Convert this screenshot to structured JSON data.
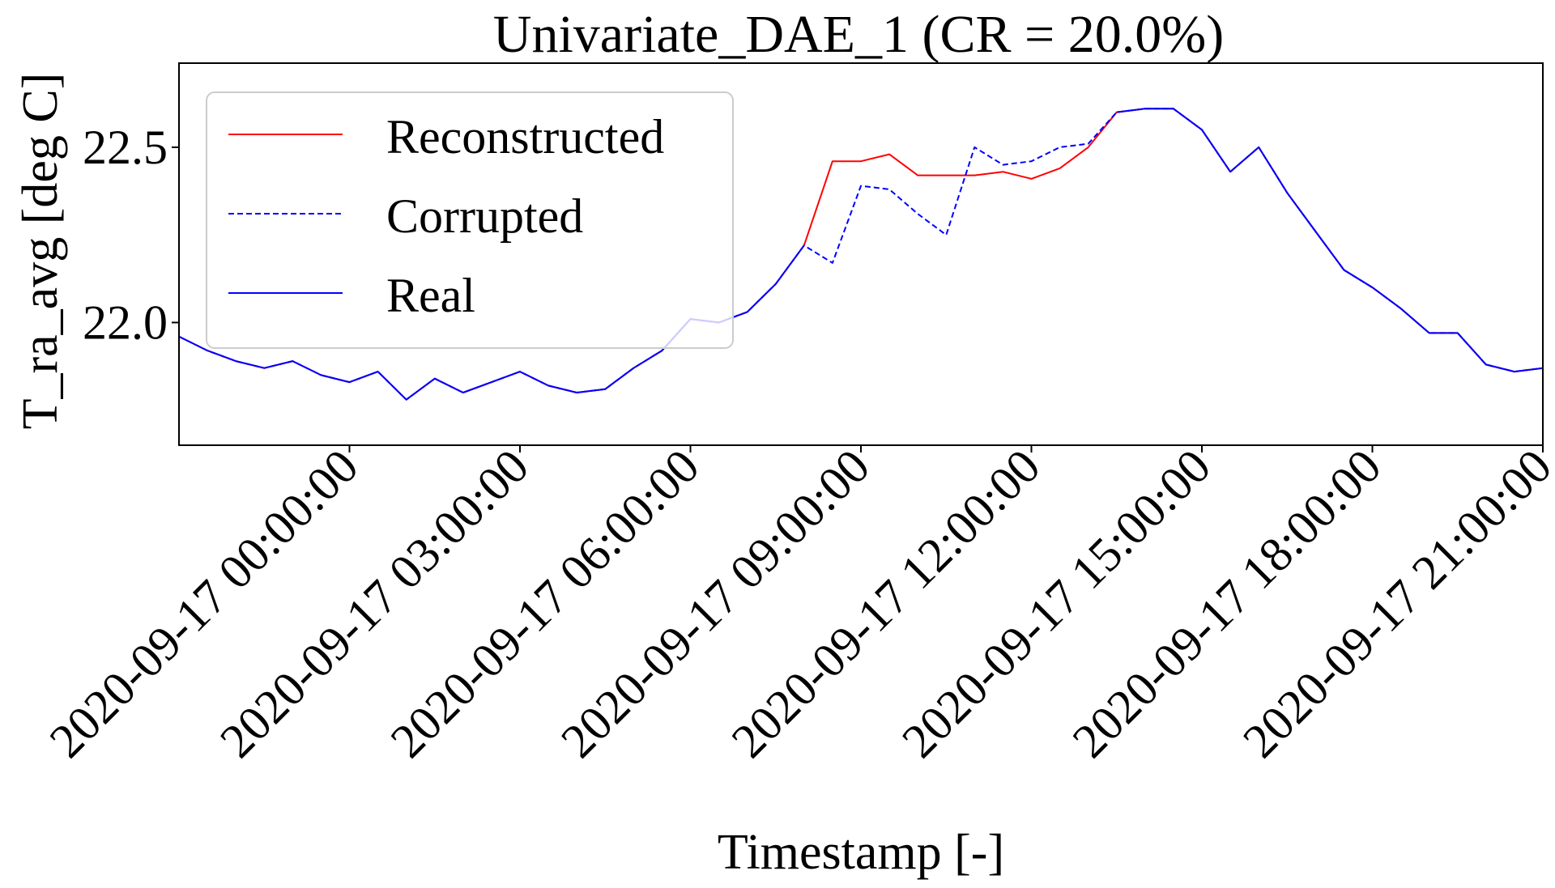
{
  "chart_data": {
    "type": "line",
    "title": "Univariate_DAE_1  (CR = 20.0%)",
    "xlabel": "Timestamp [-]",
    "ylabel": "T_ra_avg  [deg C]",
    "x_tick_labels": [
      "2020-09-17 00:00:00",
      "2020-09-17 03:00:00",
      "2020-09-17 06:00:00",
      "2020-09-17 09:00:00",
      "2020-09-17 12:00:00",
      "2020-09-17 15:00:00",
      "2020-09-17 18:00:00",
      "2020-09-17 21:00:00"
    ],
    "y_tick_labels": [
      "22.0",
      "22.5"
    ],
    "xlim": [
      "2020-09-16 21:00",
      "2020-09-17 21:00"
    ],
    "ylim": [
      21.65,
      22.74
    ],
    "legend_position": "upper-left",
    "grid": false,
    "x": [
      "2020-09-16 21:00",
      "2020-09-16 21:30",
      "2020-09-16 22:00",
      "2020-09-16 22:30",
      "2020-09-16 23:00",
      "2020-09-16 23:30",
      "2020-09-17 00:00",
      "2020-09-17 00:30",
      "2020-09-17 01:00",
      "2020-09-17 01:30",
      "2020-09-17 02:00",
      "2020-09-17 02:30",
      "2020-09-17 03:00",
      "2020-09-17 03:30",
      "2020-09-17 04:00",
      "2020-09-17 04:30",
      "2020-09-17 05:00",
      "2020-09-17 05:30",
      "2020-09-17 06:00",
      "2020-09-17 06:30",
      "2020-09-17 07:00",
      "2020-09-17 07:30",
      "2020-09-17 08:00",
      "2020-09-17 08:30",
      "2020-09-17 09:00",
      "2020-09-17 09:30",
      "2020-09-17 10:00",
      "2020-09-17 10:30",
      "2020-09-17 11:00",
      "2020-09-17 11:30",
      "2020-09-17 12:00",
      "2020-09-17 12:30",
      "2020-09-17 13:00",
      "2020-09-17 13:30",
      "2020-09-17 14:00",
      "2020-09-17 14:30",
      "2020-09-17 15:00",
      "2020-09-17 15:30",
      "2020-09-17 16:00",
      "2020-09-17 16:30",
      "2020-09-17 17:00",
      "2020-09-17 17:30",
      "2020-09-17 18:00",
      "2020-09-17 18:30",
      "2020-09-17 19:00",
      "2020-09-17 19:30",
      "2020-09-17 20:00",
      "2020-09-17 20:30",
      "2020-09-17 21:00"
    ],
    "series": [
      {
        "name": "Reconstructed",
        "color": "#ff0000",
        "dash": "solid",
        "values": [
          21.96,
          21.92,
          21.89,
          21.87,
          21.89,
          21.85,
          21.83,
          21.86,
          21.78,
          21.84,
          21.8,
          21.83,
          21.86,
          21.82,
          21.8,
          21.81,
          21.87,
          21.92,
          22.01,
          22.0,
          22.03,
          22.11,
          22.22,
          22.46,
          22.46,
          22.48,
          22.42,
          22.42,
          22.42,
          22.43,
          22.41,
          22.44,
          22.5,
          22.6,
          22.61,
          22.61,
          22.55,
          22.43,
          22.5,
          22.37,
          22.26,
          22.15,
          22.1,
          22.04,
          21.97,
          21.97,
          21.88,
          21.86,
          21.87
        ]
      },
      {
        "name": "Corrupted",
        "color": "#0000ff",
        "dash": "dashed",
        "values": [
          21.96,
          21.92,
          21.89,
          21.87,
          21.89,
          21.85,
          21.83,
          21.86,
          21.78,
          21.84,
          21.8,
          21.83,
          21.86,
          21.82,
          21.8,
          21.81,
          21.87,
          21.92,
          22.01,
          22.0,
          22.03,
          22.11,
          22.22,
          22.17,
          22.39,
          22.38,
          22.31,
          22.25,
          22.5,
          22.45,
          22.46,
          22.5,
          22.51,
          22.6,
          22.61,
          22.61,
          22.55,
          22.43,
          22.5,
          22.37,
          22.26,
          22.15,
          22.1,
          22.04,
          21.97,
          21.97,
          21.88,
          21.86,
          21.87
        ]
      },
      {
        "name": "Real",
        "color": "#0000ff",
        "dash": "solid",
        "values": [
          21.96,
          21.92,
          21.89,
          21.87,
          21.89,
          21.85,
          21.83,
          21.86,
          21.78,
          21.84,
          21.8,
          21.83,
          21.86,
          21.82,
          21.8,
          21.81,
          21.87,
          21.92,
          22.01,
          22.0,
          22.03,
          22.11,
          22.22,
          null,
          null,
          null,
          null,
          null,
          null,
          null,
          null,
          null,
          null,
          22.6,
          22.61,
          22.61,
          22.55,
          22.43,
          22.5,
          22.37,
          22.26,
          22.15,
          22.1,
          22.04,
          21.97,
          21.97,
          21.88,
          21.86,
          21.87
        ]
      }
    ]
  }
}
